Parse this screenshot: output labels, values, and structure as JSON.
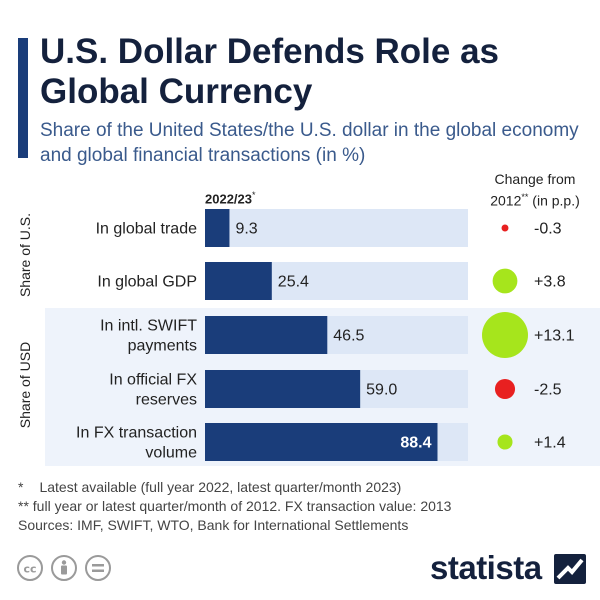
{
  "title": "U.S. Dollar Defends Role as Global Currency",
  "subtitle": "Share of the United States/the U.S. dollar in the global economy and global financial transactions (in %)",
  "column_left_label": "2022/23",
  "column_left_marker": "*",
  "column_right_label_line1": "Change from",
  "column_right_label_year": "2012",
  "column_right_marker": "**",
  "column_right_label_rest": " (in p.p.)",
  "footnotes": {
    "note1_marker": "*",
    "note1": "Latest available (full year 2022, latest quarter/month 2023)",
    "note2": "** full year or latest quarter/month of 2012. FX transaction value: 2013",
    "sources": "Sources: IMF, SWIFT, WTO, Bank for International Settlements"
  },
  "brand": "statista",
  "colors": {
    "bar": "#1a3d7a",
    "track": "#dde7f6",
    "band": "#eef3fb",
    "positive": "#a6e51c",
    "negative": "#e82020"
  },
  "icons": [
    "creative-commons-icon",
    "attribution-icon",
    "no-derivatives-icon",
    "statista-logo-icon"
  ],
  "chart_data": {
    "type": "bar",
    "orientation": "horizontal",
    "xlim": [
      0,
      100
    ],
    "groups": [
      {
        "name": "Share of U.S.",
        "categories": [
          "In global trade",
          "In global GDP"
        ]
      },
      {
        "name": "Share of USD",
        "categories": [
          "In intl. SWIFT payments",
          "In official FX reserves",
          "In FX transaction volume"
        ]
      }
    ],
    "categories": [
      "In global trade",
      "In global GDP",
      "In intl. SWIFT payments",
      "In official FX reserves",
      "In FX transaction volume"
    ],
    "category_lines": [
      [
        "In global trade"
      ],
      [
        "In global GDP"
      ],
      [
        "In intl. SWIFT",
        "payments"
      ],
      [
        "In official FX",
        "reserves"
      ],
      [
        "In FX transaction",
        "volume"
      ]
    ],
    "series": [
      {
        "name": "2022/23",
        "values": [
          9.3,
          25.4,
          46.5,
          59.0,
          88.4
        ],
        "labels": [
          "9.3",
          "25.4",
          "46.5",
          "59.0",
          "88.4"
        ]
      },
      {
        "name": "Change from 2012 (in p.p.)",
        "values": [
          -0.3,
          3.8,
          13.1,
          -2.5,
          1.4
        ],
        "labels": [
          "-0.3",
          "+3.8",
          "+13.1",
          "-2.5",
          "+1.4"
        ]
      }
    ]
  }
}
